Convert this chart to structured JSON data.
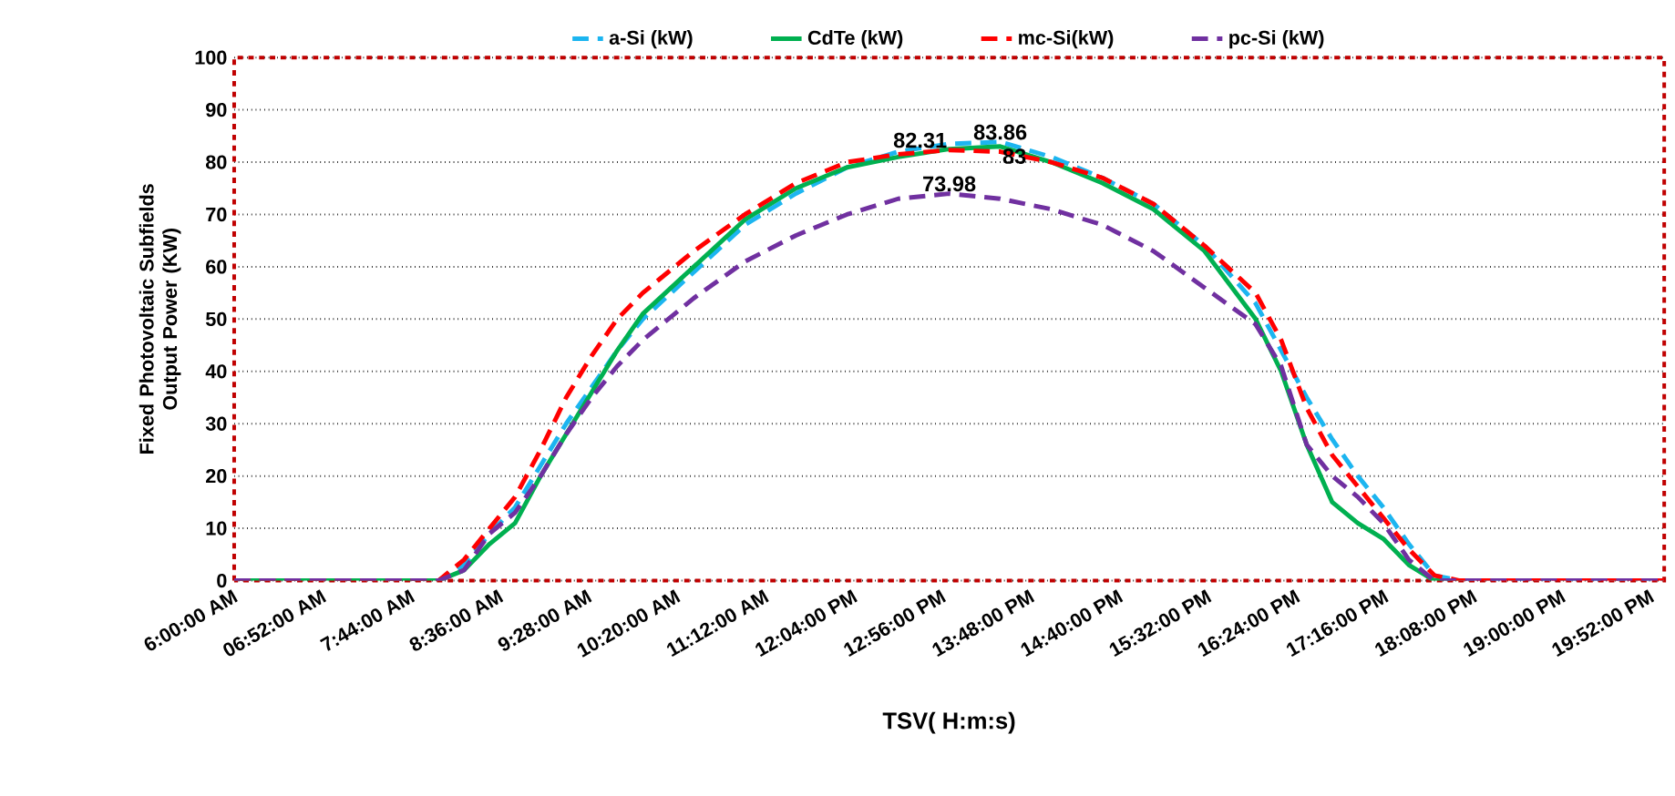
{
  "chart_data": {
    "type": "line",
    "xlabel": "TSV( H:m:s)",
    "ylabel": "Fixed Photovoltaic Subfields Output Power (KW)",
    "x": [
      6,
      7,
      8,
      8.25,
      8.5,
      8.75,
      9,
      9.25,
      9.5,
      9.75,
      10,
      10.5,
      11,
      11.5,
      12,
      12.5,
      13,
      13.5,
      14,
      14.5,
      15,
      15.5,
      16,
      16.25,
      16.5,
      16.75,
      17,
      17.25,
      17.5,
      17.75,
      18,
      19,
      20
    ],
    "xlim": [
      6,
      20
    ],
    "xticks": [
      {
        "value": 6,
        "label": "6:00:00 AM"
      },
      {
        "value": 6.8667,
        "label": "06:52:00 AM"
      },
      {
        "value": 7.7333,
        "label": "7:44:00 AM"
      },
      {
        "value": 8.6,
        "label": "8:36:00 AM"
      },
      {
        "value": 9.4667,
        "label": "9:28:00 AM"
      },
      {
        "value": 10.3333,
        "label": "10:20:00 AM"
      },
      {
        "value": 11.2,
        "label": "11:12:00 AM"
      },
      {
        "value": 12.0667,
        "label": "12:04:00 PM"
      },
      {
        "value": 12.9333,
        "label": "12:56:00 PM"
      },
      {
        "value": 13.8,
        "label": "13:48:00 PM"
      },
      {
        "value": 14.6667,
        "label": "14:40:00 PM"
      },
      {
        "value": 15.5333,
        "label": "15:32:00 PM"
      },
      {
        "value": 16.4,
        "label": "16:24:00 PM"
      },
      {
        "value": 17.2667,
        "label": "17:16:00 PM"
      },
      {
        "value": 18.1333,
        "label": "18:08:00 PM"
      },
      {
        "value": 19,
        "label": "19:00:00 PM"
      },
      {
        "value": 19.8667,
        "label": "19:52:00 PM"
      }
    ],
    "ylim": [
      0,
      100
    ],
    "yticks": [
      0,
      10,
      20,
      30,
      40,
      50,
      60,
      70,
      80,
      90,
      100
    ],
    "grid": "y",
    "legend": "top",
    "marker": "none",
    "series": [
      {
        "name": "a-Si (kW)",
        "color": "#1cb5f0",
        "line_style": "dashed",
        "values": [
          0,
          0,
          0,
          3,
          9,
          14,
          22,
          30,
          37,
          44,
          50,
          59,
          68,
          74,
          79,
          82,
          83.5,
          83.86,
          81,
          77,
          72,
          64,
          53,
          44,
          35,
          27,
          20,
          14,
          7,
          1,
          0,
          0,
          0
        ],
        "value_labels": [
          null,
          null,
          null,
          null,
          null,
          null,
          null,
          null,
          null,
          null,
          null,
          null,
          null,
          null,
          null,
          null,
          null,
          "83.86",
          null,
          null,
          null,
          null,
          null,
          null,
          null,
          null,
          null,
          null,
          null,
          null,
          null,
          null,
          null
        ]
      },
      {
        "name": "CdTe (kW)",
        "color": "#00b050",
        "line_style": "solid",
        "values": [
          0,
          0,
          0,
          2,
          7,
          11,
          20,
          28,
          36,
          44,
          51,
          60,
          69,
          75,
          79,
          81,
          82.5,
          83,
          80,
          76,
          71,
          63,
          50,
          40,
          26,
          15,
          11,
          8,
          3,
          0,
          0,
          null,
          null
        ],
        "value_labels": [
          null,
          null,
          null,
          null,
          null,
          null,
          null,
          null,
          null,
          null,
          null,
          null,
          null,
          null,
          null,
          null,
          null,
          "83",
          null,
          null,
          null,
          null,
          null,
          null,
          null,
          null,
          null,
          null,
          null,
          null,
          null,
          null,
          null
        ]
      },
      {
        "name": "mc-Si(kW)",
        "color": "#ff0000",
        "line_style": "dashed",
        "values": [
          0,
          0,
          0,
          4,
          10,
          16,
          25,
          35,
          43,
          50,
          55,
          63,
          70,
          76,
          80,
          81.5,
          82.31,
          82,
          80,
          77,
          72,
          64,
          55,
          46,
          33,
          24,
          18,
          12,
          6,
          1,
          0,
          0,
          0
        ],
        "value_labels": [
          null,
          null,
          null,
          null,
          null,
          null,
          null,
          null,
          null,
          null,
          null,
          null,
          null,
          null,
          null,
          null,
          "82.31",
          null,
          null,
          null,
          null,
          null,
          null,
          null,
          null,
          null,
          null,
          null,
          null,
          null,
          null,
          null,
          null
        ]
      },
      {
        "name": "pc-Si (kW)",
        "color": "#7030a0",
        "line_style": "dashed",
        "values": [
          0,
          0,
          0,
          2,
          9,
          13,
          20,
          28,
          35,
          41,
          46,
          54,
          61,
          66,
          70,
          73,
          73.98,
          73,
          71,
          68,
          63,
          56,
          49,
          41,
          26,
          20,
          16,
          11,
          4,
          0,
          0,
          0,
          0
        ],
        "value_labels": [
          null,
          null,
          null,
          null,
          null,
          null,
          null,
          null,
          null,
          null,
          null,
          null,
          null,
          null,
          null,
          null,
          "73.98",
          null,
          null,
          null,
          null,
          null,
          null,
          null,
          null,
          null,
          null,
          null,
          null,
          null,
          null,
          null,
          null
        ]
      }
    ]
  }
}
